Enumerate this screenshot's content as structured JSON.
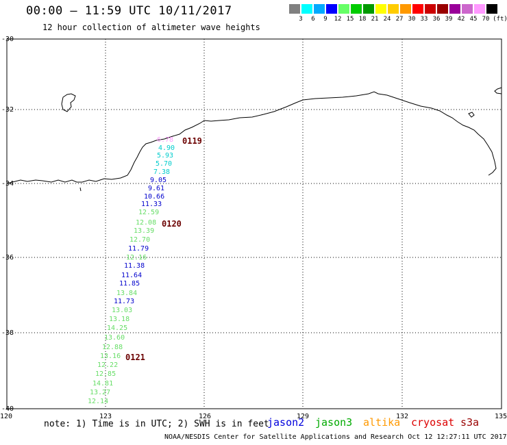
{
  "header": {
    "title": "00:00 – 11:59 UTC 10/11/2017",
    "subtitle": "12 hour collection of altimeter wave heights"
  },
  "legend": {
    "colors": [
      "#808080",
      "#00ffff",
      "#00aaff",
      "#0000ff",
      "#66ff66",
      "#00cc00",
      "#009900",
      "#ffff00",
      "#ffcc00",
      "#ff9900",
      "#ff0000",
      "#cc0000",
      "#990000",
      "#990099",
      "#cc66cc",
      "#ff99ff",
      "#000000"
    ],
    "labels": [
      "3",
      "6",
      "9",
      "12",
      "15",
      "18",
      "21",
      "24",
      "27",
      "30",
      "33",
      "36",
      "39",
      "42",
      "45",
      "70",
      "(ft)"
    ]
  },
  "axes": {
    "lat_labels": [
      "-30",
      "-32",
      "-34",
      "-36",
      "-38",
      "-40"
    ],
    "lon_labels": [
      "120",
      "123",
      "126",
      "129",
      "132",
      "135"
    ]
  },
  "wave_labels": [
    {
      "text": "6.78",
      "color": "#ff99ff"
    },
    {
      "text": "4.90",
      "color": "#00cccc"
    },
    {
      "text": "5.93",
      "color": "#00cccc"
    },
    {
      "text": "5.70",
      "color": "#00cccc"
    },
    {
      "text": "7.38",
      "color": "#00cccc"
    },
    {
      "text": "9.05",
      "color": "#0000cc"
    },
    {
      "text": "9.61",
      "color": "#0000cc"
    },
    {
      "text": "10.66",
      "color": "#0000cc"
    },
    {
      "text": "11.33",
      "color": "#0000cc"
    },
    {
      "text": "12.59",
      "color": "#66dd66"
    },
    {
      "text": "12.08",
      "color": "#66dd66"
    },
    {
      "text": "13.39",
      "color": "#66dd66"
    },
    {
      "text": "12.70",
      "color": "#66dd66"
    },
    {
      "text": "11.79",
      "color": "#0000cc"
    },
    {
      "text": "12.16",
      "color": "#66dd66"
    },
    {
      "text": "11.38",
      "color": "#0000cc"
    },
    {
      "text": "11.64",
      "color": "#0000cc"
    },
    {
      "text": "11.85",
      "color": "#0000cc"
    },
    {
      "text": "13.84",
      "color": "#66dd66"
    },
    {
      "text": "11.73",
      "color": "#0000cc"
    },
    {
      "text": "13.03",
      "color": "#66dd66"
    },
    {
      "text": "13.18",
      "color": "#66dd66"
    },
    {
      "text": "14.25",
      "color": "#66dd66"
    },
    {
      "text": "13.60",
      "color": "#66dd66"
    },
    {
      "text": "12.88",
      "color": "#66dd66"
    },
    {
      "text": "13.16",
      "color": "#66dd66"
    },
    {
      "text": "12.22",
      "color": "#66dd66"
    },
    {
      "text": "12.85",
      "color": "#66dd66"
    },
    {
      "text": "14.81",
      "color": "#66dd66"
    },
    {
      "text": "13.27",
      "color": "#66dd66"
    },
    {
      "text": "12.14",
      "color": "#66dd66"
    }
  ],
  "pass_labels": [
    "0119",
    "0120",
    "0121"
  ],
  "footer": {
    "note": "note: 1) Time is in UTC; 2) SWH is in feet",
    "satellites": [
      {
        "name": "jason2",
        "color": "#0000dd"
      },
      {
        "name": "jason3",
        "color": "#00aa00"
      },
      {
        "name": "altika",
        "color": "#ff9900"
      },
      {
        "name": "cryosat",
        "color": "#dd0000"
      },
      {
        "name": "s3a",
        "color": "#990000"
      }
    ],
    "credit": "NOAA/NESDIS Center for Satellite Applications and Research   Oct 12 12:27:11 UTC 2017"
  }
}
